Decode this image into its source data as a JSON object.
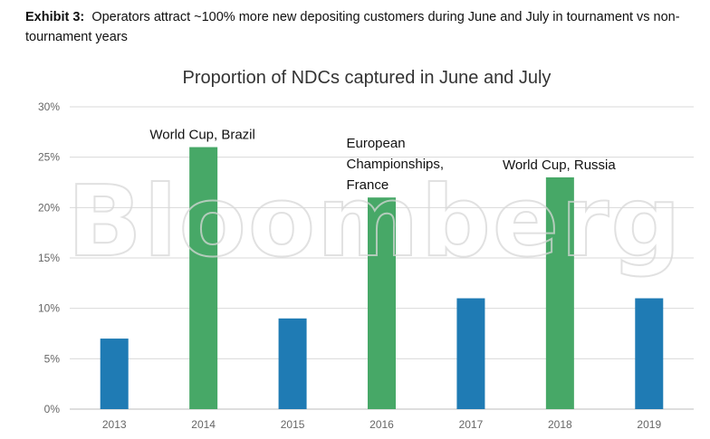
{
  "exhibit": {
    "label": "Exhibit 3:",
    "caption": "Operators attract ~100% more new depositing customers during June and July in tournament vs non-tournament years"
  },
  "watermark": "Bloomberg",
  "chart_data": {
    "type": "bar",
    "title": "Proportion of NDCs captured in June and July",
    "xlabel": "",
    "ylabel": "",
    "categories": [
      "2013",
      "2014",
      "2015",
      "2016",
      "2017",
      "2018",
      "2019"
    ],
    "values": [
      7,
      26,
      9,
      21,
      11,
      23,
      11
    ],
    "ylim": [
      0,
      30
    ],
    "yticks": [
      0,
      5,
      10,
      15,
      20,
      25,
      30
    ],
    "ytick_labels": [
      "0%",
      "5%",
      "10%",
      "15%",
      "20%",
      "25%",
      "30%"
    ],
    "grid": true,
    "colors": {
      "non_tournament": "#1f7bb4",
      "tournament": "#47a867",
      "grid": "#d9d9d9"
    },
    "tournament_years": [
      "2014",
      "2016",
      "2018"
    ],
    "annotations": [
      {
        "category": "2014",
        "lines": [
          "World Cup, Brazil"
        ]
      },
      {
        "category": "2016",
        "lines": [
          "European",
          "Championships,",
          "France"
        ]
      },
      {
        "category": "2018",
        "lines": [
          "World Cup, Russia"
        ]
      }
    ]
  }
}
